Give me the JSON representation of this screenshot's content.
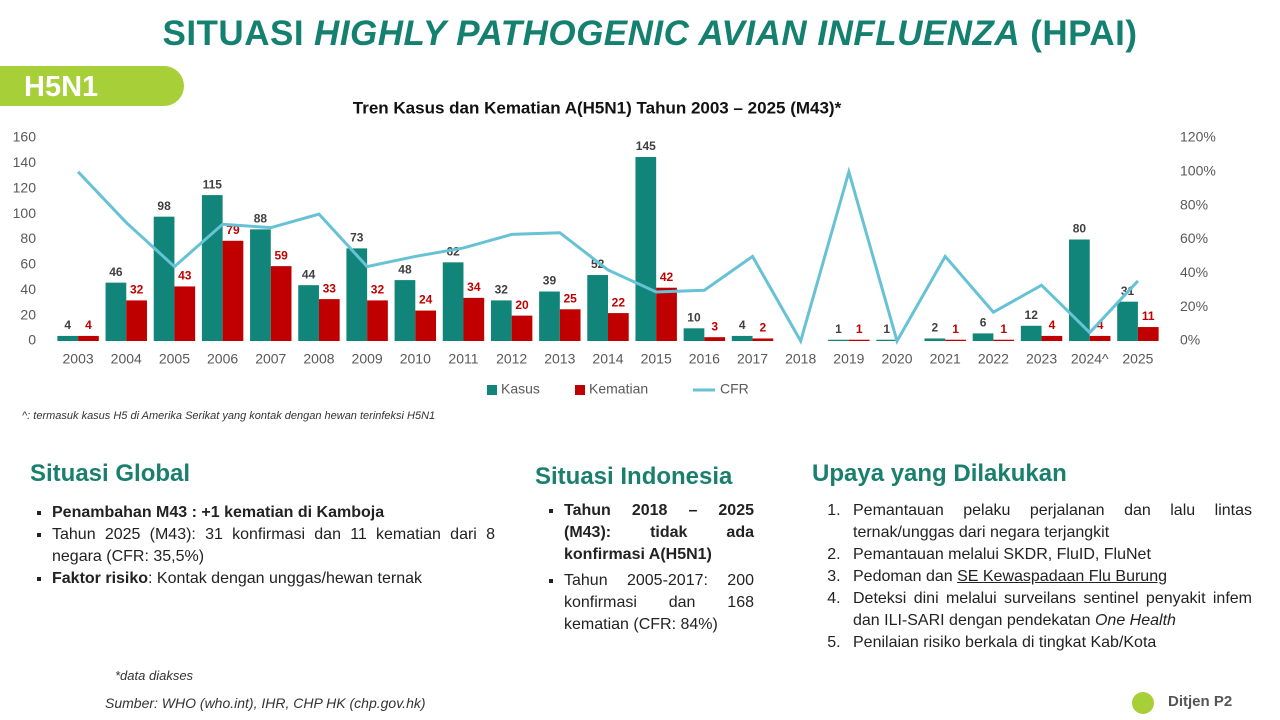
{
  "header": {
    "title": {
      "prefix": "SITUASI",
      "emphasis": "HIGHLY PATHOGENIC AVIAN INFLUENZA",
      "suffix": "(HPAI)"
    },
    "badge": "H5N1"
  },
  "chart_data": {
    "type": "bar",
    "title": "Tren Kasus dan Kematian A(H5N1) Tahun 2003 – 2025 (M43)*",
    "footnote": "^: termasuk kasus H5 di Amerika Serikat yang kontak dengan hewan terinfeksi H5N1",
    "categories": [
      "2003",
      "2004",
      "2005",
      "2006",
      "2007",
      "2008",
      "2009",
      "2010",
      "2011",
      "2012",
      "2013",
      "2014",
      "2015",
      "2016",
      "2017",
      "2018",
      "2019",
      "2020",
      "2021",
      "2022",
      "2023",
      "2024^",
      "2025"
    ],
    "series": [
      {
        "name": "Kasus",
        "type": "bar",
        "color": "#12857a",
        "label_color": "#404040",
        "values": [
          4,
          46,
          98,
          115,
          88,
          44,
          73,
          48,
          62,
          32,
          39,
          52,
          145,
          10,
          4,
          null,
          1,
          1,
          2,
          6,
          12,
          80,
          31
        ]
      },
      {
        "name": "Kematian",
        "type": "bar",
        "color": "#c00000",
        "label_color": "#c00000",
        "values": [
          4,
          32,
          43,
          79,
          59,
          33,
          32,
          24,
          34,
          20,
          25,
          22,
          42,
          3,
          2,
          null,
          1,
          null,
          1,
          1,
          4,
          4,
          11
        ]
      },
      {
        "name": "CFR",
        "type": "line",
        "axis": "y2",
        "color": "#66c2d4",
        "values": [
          100,
          70,
          44,
          69,
          67,
          75,
          44,
          50,
          55,
          63,
          64,
          42,
          29,
          30,
          50,
          0,
          100,
          0,
          50,
          17,
          33,
          5,
          35.5
        ]
      }
    ],
    "ylim": [
      0,
      160
    ],
    "yticks": [
      0,
      20,
      40,
      60,
      80,
      100,
      120,
      140,
      160
    ],
    "y2lim": [
      0,
      120
    ],
    "y2ticks": [
      {
        "value": 0,
        "label": "0%"
      },
      {
        "value": 20,
        "label": "20%"
      },
      {
        "value": 40,
        "label": "40%"
      },
      {
        "value": 60,
        "label": "60%"
      },
      {
        "value": 80,
        "label": "80%"
      },
      {
        "value": 100,
        "label": "100%"
      },
      {
        "value": 120,
        "label": "120%"
      }
    ],
    "grid": false,
    "legend": "bottom"
  },
  "global": {
    "heading": "Situasi Global",
    "items": [
      [
        "Penambahan M43 : +1 kematian di Kamboja"
      ],
      [
        "Tahun 2025 (M43): 31 konfirmasi dan 11 kematian dari 8 negara (CFR: 35,5%)"
      ],
      [
        "Faktor risiko",
        ": Kontak dengan unggas/hewan ternak"
      ]
    ]
  },
  "indonesia": {
    "heading": "Situasi Indonesia",
    "items": [
      "Tahun 2018 – 2025 (M43): tidak ada konfirmasi A(H5N1)",
      "Tahun 2005-2017: 200 konfirmasi dan 168 kematian (CFR: 84%)"
    ]
  },
  "upaya": {
    "heading": "Upaya yang Dilakukan",
    "items": [
      [
        "Pemantauan pelaku perjalanan dan lalu lintas ternak/unggas dari negara terjangkit"
      ],
      [
        "Pemantauan melalui SKDR, FluID, FluNet"
      ],
      [
        "Pedoman dan ",
        "SE Kewaspadaan Flu Burung"
      ],
      [
        "Deteksi dini melalui surveilans sentinel penyakit infem dan ILI-SARI dengan pendekatan ",
        "One Health"
      ],
      [
        "Penilaian risiko berkala di tingkat Kab/Kota"
      ]
    ]
  },
  "footer": {
    "note": "*data diakses",
    "source": "Sumber: WHO (who.int), IHR, CHP HK (chp.gov.hk)",
    "logo": "Ditjen P2"
  }
}
